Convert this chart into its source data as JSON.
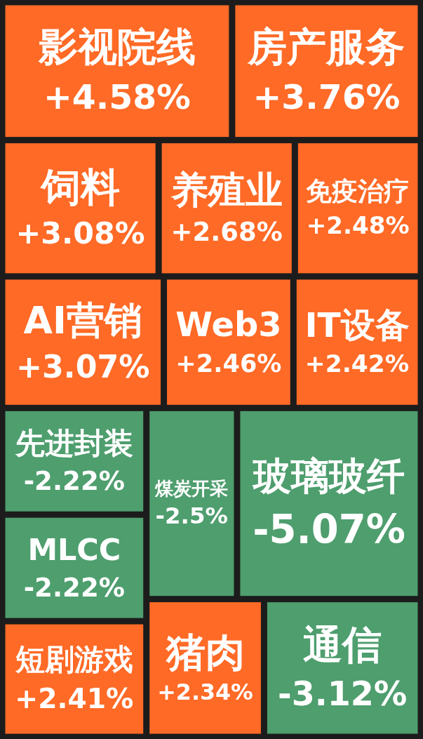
{
  "chart_data": {
    "type": "other",
    "categories": [
      "影视院线",
      "房产服务",
      "饲料",
      "养殖业",
      "免疫治疗",
      "AI营销",
      "Web3",
      "IT设备",
      "先进封装",
      "MLCC",
      "短剧游戏",
      "煤炭开采",
      "玻璃玻纤",
      "猪肉",
      "通信"
    ],
    "values": [
      4.58,
      3.76,
      3.08,
      2.68,
      2.48,
      3.07,
      2.46,
      2.42,
      -2.22,
      -2.22,
      2.41,
      -2.5,
      -5.07,
      2.34,
      -3.12
    ],
    "value_labels": [
      "+4.58%",
      "+3.76%",
      "+3.08%",
      "+2.68%",
      "+2.48%",
      "+3.07%",
      "+2.46%",
      "+2.42%",
      "-2.22%",
      "-2.22%",
      "+2.41%",
      "-2.5%",
      "-5.07%",
      "+2.34%",
      "-3.12%"
    ],
    "colors": [
      "#ff6a26",
      "#ff6a26",
      "#ff6a26",
      "#ff6a26",
      "#ff6a26",
      "#ff6a26",
      "#ff6a26",
      "#ff6a26",
      "#4e9e6e",
      "#4e9e6e",
      "#ff6a26",
      "#4e9e6e",
      "#4e9e6e",
      "#ff6a26",
      "#4e9e6e"
    ]
  }
}
